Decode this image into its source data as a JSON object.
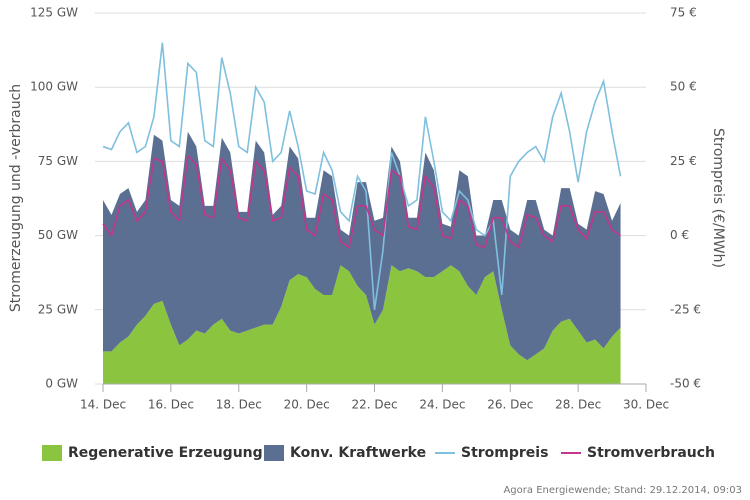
{
  "chart_data": {
    "type": "area",
    "ylabel": "Stromerzeugung und -verbrauch",
    "y2label": "Strompreis (€/MWh)",
    "source": "Agora Energiewende; Stand: 29.12.2014, 09:03",
    "x": [
      14,
      14.25,
      14.5,
      14.75,
      15,
      15.25,
      15.5,
      15.75,
      16,
      16.25,
      16.5,
      16.75,
      17,
      17.25,
      17.5,
      17.75,
      18,
      18.25,
      18.5,
      18.75,
      19,
      19.25,
      19.5,
      19.75,
      20,
      20.25,
      20.5,
      20.75,
      21,
      21.25,
      21.5,
      21.75,
      22,
      22.25,
      22.5,
      22.75,
      23,
      23.25,
      23.5,
      23.75,
      24,
      24.25,
      24.5,
      24.75,
      25,
      25.25,
      25.5,
      25.75,
      26,
      26.25,
      26.5,
      26.75,
      27,
      27.25,
      27.5,
      27.75,
      28,
      28.25,
      28.5,
      28.75,
      29,
      29.25
    ],
    "xlim": [
      14,
      30
    ],
    "xticks": [
      {
        "value": 14,
        "label": "14. Dec"
      },
      {
        "value": 16,
        "label": "16. Dec"
      },
      {
        "value": 18,
        "label": "18. Dec"
      },
      {
        "value": 20,
        "label": "20. Dec"
      },
      {
        "value": 22,
        "label": "22. Dec"
      },
      {
        "value": 24,
        "label": "24. Dec"
      },
      {
        "value": 26,
        "label": "26. Dec"
      },
      {
        "value": 28,
        "label": "28. Dec"
      },
      {
        "value": 30,
        "label": "30. Dec"
      }
    ],
    "ylim": [
      0,
      125
    ],
    "yticks": [
      {
        "value": 0,
        "label": "0 GW"
      },
      {
        "value": 25,
        "label": "25 GW"
      },
      {
        "value": 50,
        "label": "50 GW"
      },
      {
        "value": 75,
        "label": "75 GW"
      },
      {
        "value": 100,
        "label": "100 GW"
      },
      {
        "value": 125,
        "label": "125 GW"
      }
    ],
    "y2lim": [
      -50,
      75
    ],
    "y2ticks": [
      {
        "value": -50,
        "label": "-50 €"
      },
      {
        "value": -25,
        "label": "-25 €"
      },
      {
        "value": 0,
        "label": "0 €"
      },
      {
        "value": 25,
        "label": "25 €"
      },
      {
        "value": 50,
        "label": "50 €"
      },
      {
        "value": 75,
        "label": "75 €"
      }
    ],
    "grid": true,
    "series": [
      {
        "name": "Regenerative Erzeugung",
        "color": "#8bc540",
        "kind": "area",
        "stack": true,
        "values": [
          11,
          11,
          14,
          16,
          20,
          23,
          27,
          28,
          20,
          13,
          15,
          18,
          17,
          20,
          22,
          18,
          17,
          18,
          19,
          20,
          20,
          26,
          35,
          37,
          36,
          32,
          30,
          30,
          40,
          38,
          33,
          30,
          20,
          25,
          40,
          38,
          39,
          38,
          36,
          36,
          38,
          40,
          38,
          33,
          30,
          36,
          38,
          25,
          13,
          10,
          8,
          10,
          12,
          18,
          21,
          22,
          18,
          14,
          15,
          12,
          16,
          19
        ]
      },
      {
        "name": "Konv. Kraftwerke",
        "color": "#5b6f93",
        "kind": "area",
        "stack": true,
        "values": [
          51,
          46,
          50,
          50,
          38,
          39,
          57,
          54,
          42,
          47,
          70,
          62,
          43,
          40,
          61,
          60,
          41,
          40,
          63,
          58,
          37,
          34,
          45,
          39,
          20,
          24,
          42,
          40,
          12,
          12,
          35,
          38,
          35,
          31,
          40,
          37,
          17,
          18,
          42,
          36,
          16,
          13,
          34,
          37,
          20,
          14,
          24,
          37,
          39,
          40,
          54,
          52,
          40,
          32,
          45,
          44,
          36,
          38,
          50,
          52,
          39,
          42
        ]
      },
      {
        "name": "Strompreis",
        "color": "#7fc0de",
        "kind": "line",
        "axis": "y2",
        "values": [
          30,
          29,
          35,
          38,
          28,
          30,
          40,
          65,
          32,
          30,
          58,
          55,
          32,
          30,
          60,
          48,
          30,
          28,
          50,
          45,
          25,
          28,
          42,
          30,
          15,
          14,
          28,
          22,
          8,
          5,
          20,
          15,
          -25,
          -5,
          28,
          20,
          10,
          12,
          40,
          25,
          8,
          5,
          15,
          12,
          2,
          0,
          5,
          -20,
          20,
          25,
          28,
          30,
          25,
          40,
          48,
          35,
          18,
          35,
          45,
          52,
          35,
          20
        ]
      },
      {
        "name": "Stromverbrauch",
        "color": "#c2368b",
        "kind": "line",
        "values": [
          54,
          50,
          60,
          62,
          55,
          58,
          76,
          75,
          58,
          55,
          77,
          74,
          57,
          56,
          76,
          72,
          56,
          55,
          75,
          72,
          55,
          56,
          73,
          70,
          52,
          50,
          64,
          62,
          48,
          46,
          60,
          60,
          52,
          50,
          72,
          70,
          53,
          52,
          70,
          66,
          50,
          49,
          62,
          60,
          47,
          46,
          56,
          56,
          48,
          46,
          57,
          56,
          50,
          48,
          60,
          60,
          52,
          49,
          58,
          58,
          52,
          50
        ]
      }
    ]
  }
}
